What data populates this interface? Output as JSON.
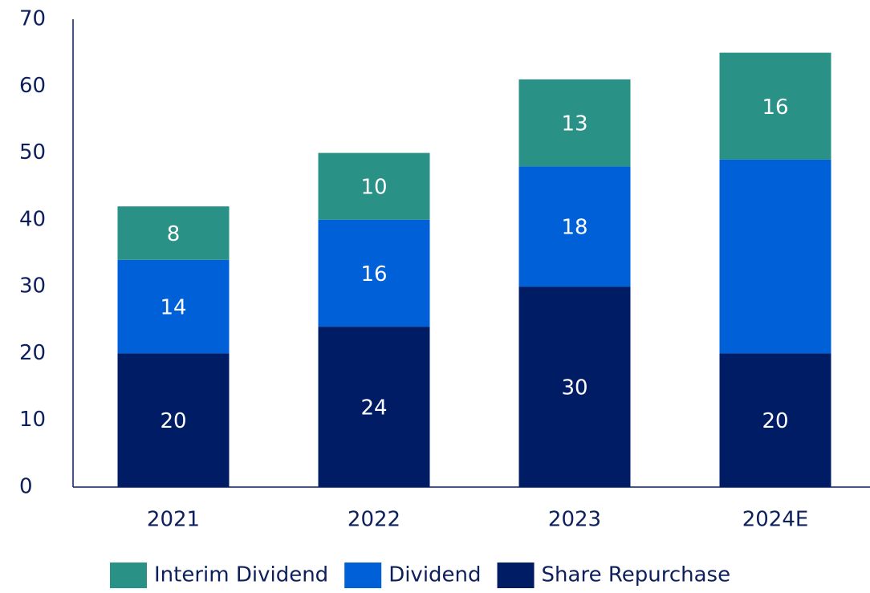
{
  "chart_data": {
    "type": "stacked_bar",
    "categories": [
      "2021",
      "2022",
      "2023",
      "2024E"
    ],
    "series": [
      {
        "name": "Share Repurchase",
        "color": "#001c64",
        "values": [
          20,
          24,
          30,
          20
        ]
      },
      {
        "name": "Dividend",
        "color": "#0060d8",
        "values": [
          14,
          16,
          18,
          29
        ],
        "value_labels": [
          "14",
          "16",
          "18",
          null
        ]
      },
      {
        "name": "Interim Dividend",
        "color": "#2a9187",
        "values": [
          8,
          10,
          13,
          16
        ]
      }
    ],
    "ylim": [
      0,
      70
    ],
    "yticks": [
      0,
      10,
      20,
      30,
      40,
      50,
      60,
      70
    ],
    "grid": false,
    "legend": "bottom"
  }
}
